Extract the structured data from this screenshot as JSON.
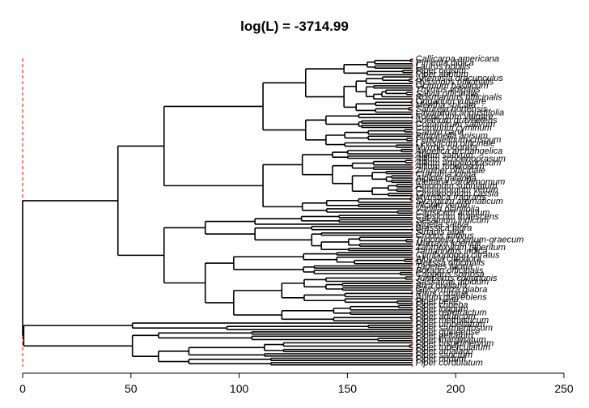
{
  "chart_data": {
    "type": "dendrogram",
    "title": "log(L) = -3714.99",
    "xlim": [
      0,
      250
    ],
    "x_ticks": [
      0,
      50,
      100,
      150,
      200,
      250
    ],
    "x_tick_labels": [
      "0",
      "50",
      "100",
      "150",
      "200",
      "250"
    ],
    "reference_lines_x": [
      0,
      180
    ],
    "tip_depth": 180,
    "legible_tip_labels": [
      "Callicarpa americana",
      "Pimenta dioica",
      "Laurus nobilis",
      "Piper nigrum",
      "Piper auritum",
      "Artemisia dracunculus",
      "Hyssopus officinalis",
      "Ocimum basilicum",
      "Thymus vulgaris",
      "Salvia officinalis",
      "Rosmarinus officinalis",
      "Origanum vulgare",
      "Mentha spicata",
      "Satureja hortensis",
      "Lavandula angustifolia",
      "Foeniculum vulgare",
      "Anethum graveolens",
      "Coriandrum sativum",
      "Cuminum cyminum",
      "Carum carvi",
      "Pimpinella anisum",
      "Petroselinum crispum",
      "Levisticum officinale",
      "Myrrhis odorata",
      "Angelica archangelica",
      "Allium sativum",
      "Allium schoenoprasum",
      "Allium ampeloprasum",
      "Allium tuberosum",
      "Zingiber officinale",
      "Curcuma longa",
      "Alpinia galanga",
      "Elettaria cardamomum",
      "Amomum subulatum",
      "Cinnamomum verum",
      "Cinnamomum cassia",
      "Myristica fragrans",
      "Syzygium aromaticum",
      "Illicium verum",
      "Vanilla planifolia",
      "Capsicum annuum",
      "Capsicum frutescens",
      "Sesamum indicum",
      "Nigella sativa",
      "Brassica nigra",
      "Sinapis alba",
      "Crocus sativus",
      "Trigonella foenum-graecum",
      "Murraya koenigii",
      "Zanthoxylum piperitum",
      "Tamarindus indica",
      "Cymbopogon citratus",
      "Aloysia citrodora",
      "Melissa officinalis",
      "Tagetes lucida",
      "Borago officinalis",
      "Capparis spinosa",
      "Juniperus communis",
      "Sassafras albidum",
      "Bixa orellana",
      "Glycyrrhiza glabra",
      "Rhus coriaria",
      "Apium graveolens",
      "Piper betle",
      "Piper cubeba",
      "Piper longum",
      "Piper retrofractum",
      "Piper aduncum",
      "Piper methysticum",
      "Piper umbellatum",
      "Piper sarmentosum",
      "Piper guineense",
      "Piper peltatum",
      "Piper marginatum",
      "Piper hispidinervum",
      "Piper tuberculatum",
      "Piper amalago",
      "Piper sanctum",
      "Piper nudum",
      "Piper cordulatum"
    ]
  }
}
